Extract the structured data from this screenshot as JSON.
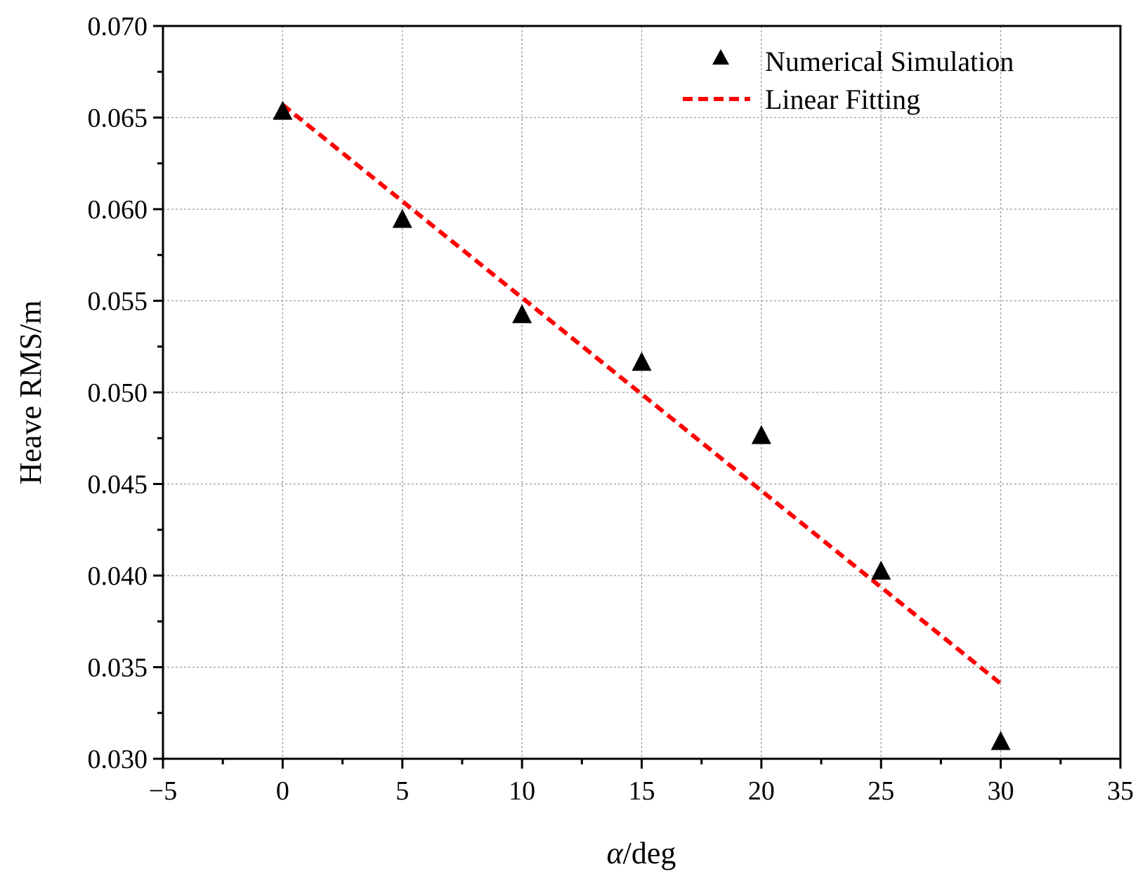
{
  "chart_data": {
    "type": "scatter",
    "title": "",
    "xlabel_italic": "α",
    "xlabel_rest": "/deg",
    "ylabel": "Heave RMS/m",
    "xlim": [
      -5,
      35
    ],
    "ylim": [
      0.03,
      0.07
    ],
    "xticks": [
      -5,
      0,
      5,
      10,
      15,
      20,
      25,
      30,
      35
    ],
    "xtick_labels": [
      "−5",
      "0",
      "5",
      "10",
      "15",
      "20",
      "25",
      "30",
      "35"
    ],
    "yticks": [
      0.03,
      0.035,
      0.04,
      0.045,
      0.05,
      0.055,
      0.06,
      0.065,
      0.07
    ],
    "ytick_labels": [
      "0.030",
      "0.035",
      "0.040",
      "0.045",
      "0.050",
      "0.055",
      "0.060",
      "0.065",
      "0.070"
    ],
    "grid": true,
    "legend_position": "top-right",
    "series": [
      {
        "name": "Numerical Simulation",
        "kind": "scatter",
        "marker": "triangle",
        "color": "#000000",
        "x": [
          0,
          5,
          10,
          15,
          20,
          25,
          30
        ],
        "y": [
          0.0653,
          0.0594,
          0.0542,
          0.0516,
          0.0476,
          0.0402,
          0.0309
        ]
      },
      {
        "name": "Linear Fitting",
        "kind": "line",
        "style": "dashed",
        "color": "#ff0000",
        "x": [
          0,
          30
        ],
        "y": [
          0.0657,
          0.0341
        ]
      }
    ]
  }
}
